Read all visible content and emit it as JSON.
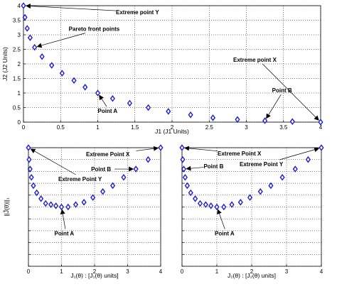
{
  "chart_data": [
    {
      "type": "scatter",
      "xlabel": "J1 (J1 Units)",
      "ylabel": "J2 (J2 Units)",
      "xlim": [
        0,
        4
      ],
      "ylim": [
        0,
        4
      ],
      "xticks": [
        0,
        0.5,
        1,
        1.5,
        2,
        2.5,
        3,
        3.5,
        4
      ],
      "xtick_labels": [
        "0",
        "0.5",
        "1",
        "1.5",
        "2",
        "2.5",
        "3",
        "3.5",
        "4"
      ],
      "yticks": [
        0,
        0.5,
        1,
        1.5,
        2,
        2.5,
        3,
        3.5,
        4
      ],
      "ytick_labels": [
        "0",
        "0.5",
        "1",
        "1.5",
        "2",
        "2.5",
        "3",
        "3.5",
        "4"
      ],
      "grid": true,
      "marker": "diamond",
      "marker_color": "#1f1fcc",
      "x": [
        0.0,
        0.02,
        0.05,
        0.09,
        0.15,
        0.25,
        0.38,
        0.52,
        0.68,
        0.83,
        1.0,
        1.2,
        1.43,
        1.68,
        1.95,
        2.25,
        2.55,
        2.88,
        3.25,
        3.62,
        4.0
      ],
      "y": [
        4.0,
        3.6,
        3.22,
        2.9,
        2.57,
        2.25,
        1.95,
        1.68,
        1.43,
        1.2,
        1.0,
        0.81,
        0.65,
        0.5,
        0.37,
        0.25,
        0.15,
        0.09,
        0.05,
        0.02,
        0.0
      ],
      "annotations": [
        {
          "text": "Extreme point Y",
          "point": [
            0.0,
            4.0
          ],
          "placement": "right"
        },
        {
          "text": "Pareto front points",
          "point": [
            0.15,
            2.57
          ],
          "placement": "above-right"
        },
        {
          "text": "Point A",
          "point": [
            1.0,
            1.0
          ],
          "placement": "below-right"
        },
        {
          "text": "Extreme point X",
          "point": [
            4.0,
            0.0
          ],
          "placement": "upper-left"
        },
        {
          "text": "Point B",
          "point": [
            3.25,
            0.05
          ],
          "placement": "above"
        }
      ]
    },
    {
      "type": "scatter",
      "xlabel": "J₁(θ) : [J₁(θ) units]",
      "ylabel": "||J̃(θ)||₁",
      "xlim": [
        0,
        4
      ],
      "ylim": [
        0,
        1
      ],
      "xticks": [
        0,
        1,
        2,
        3,
        4
      ],
      "xtick_labels": [
        "0",
        "1",
        "2",
        "3",
        "4"
      ],
      "yticks": [
        0,
        0.1,
        0.2,
        0.3,
        0.4,
        0.5,
        0.6,
        0.7,
        0.8,
        0.9,
        1
      ],
      "grid": true,
      "marker": "diamond",
      "marker_color": "#1f1fcc",
      "x": [
        0.0,
        0.02,
        0.05,
        0.09,
        0.15,
        0.25,
        0.38,
        0.52,
        0.68,
        0.83,
        1.0,
        1.2,
        1.43,
        1.68,
        1.95,
        2.25,
        2.55,
        2.88,
        3.25,
        3.62,
        4.0
      ],
      "y": [
        1.0,
        0.9,
        0.82,
        0.75,
        0.68,
        0.62,
        0.57,
        0.53,
        0.52,
        0.51,
        0.5,
        0.5,
        0.52,
        0.54,
        0.58,
        0.63,
        0.68,
        0.75,
        0.82,
        0.9,
        1.0
      ],
      "annotations": [
        {
          "text": "Extreme Point Y",
          "point": [
            0.0,
            1.0
          ],
          "placement": "below-right"
        },
        {
          "text": "Point A",
          "point": [
            1.0,
            0.5
          ],
          "placement": "below"
        },
        {
          "text": "Extreme Point X",
          "point": [
            4.0,
            1.0
          ],
          "placement": "left"
        },
        {
          "text": "Point B",
          "point": [
            3.25,
            0.82
          ],
          "placement": "left"
        }
      ]
    },
    {
      "type": "scatter",
      "xlabel": "J₂(θ) : [J₂(θ) units]",
      "ylabel": "",
      "xlim": [
        0,
        4
      ],
      "ylim": [
        0,
        1
      ],
      "xticks": [
        0,
        1,
        2,
        3,
        4
      ],
      "xtick_labels": [
        "0",
        "1",
        "2",
        "3",
        "4"
      ],
      "yticks": [
        0,
        0.1,
        0.2,
        0.3,
        0.4,
        0.5,
        0.6,
        0.7,
        0.8,
        0.9,
        1
      ],
      "grid": true,
      "marker": "diamond",
      "marker_color": "#1f1fcc",
      "x": [
        0.0,
        0.02,
        0.05,
        0.09,
        0.15,
        0.25,
        0.38,
        0.52,
        0.68,
        0.83,
        1.0,
        1.2,
        1.43,
        1.68,
        1.95,
        2.25,
        2.55,
        2.88,
        3.25,
        3.62,
        4.0
      ],
      "y": [
        1.0,
        0.9,
        0.82,
        0.75,
        0.68,
        0.62,
        0.57,
        0.53,
        0.52,
        0.51,
        0.5,
        0.5,
        0.52,
        0.54,
        0.58,
        0.63,
        0.68,
        0.75,
        0.82,
        0.9,
        1.0
      ],
      "annotations": [
        {
          "text": "Extreme Point X",
          "point": [
            0.0,
            1.0
          ],
          "placement": "right"
        },
        {
          "text": "Point B",
          "point": [
            0.05,
            0.82
          ],
          "placement": "right"
        },
        {
          "text": "Point A",
          "point": [
            1.0,
            0.5
          ],
          "placement": "below"
        },
        {
          "text": "Extreme Point Y",
          "point": [
            4.0,
            1.0
          ],
          "placement": "lower-left"
        }
      ]
    }
  ]
}
